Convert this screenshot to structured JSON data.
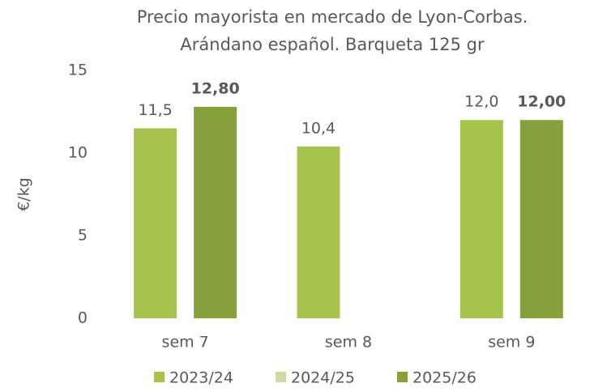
{
  "chart_data": {
    "type": "bar",
    "title": [
      "Precio mayorista en mercado de Lyon-Corbas.",
      "Arándano español. Barqueta 125 gr"
    ],
    "y_label": "€/kg",
    "categories": [
      "sem 7",
      "sem 8",
      "sem 9"
    ],
    "series": [
      {
        "name": "2023/24",
        "color": "#a6c34b",
        "values": [
          11.5,
          10.4,
          12.0
        ],
        "value_labels": [
          "11,5",
          "10,4",
          "12,0"
        ],
        "label_weight": "normal"
      },
      {
        "name": "2024/25",
        "color": "#cddca6",
        "values": [
          null,
          null,
          null
        ],
        "value_labels": [
          null,
          null,
          null
        ],
        "label_weight": "normal"
      },
      {
        "name": "2025/26",
        "color": "#86a03c",
        "values": [
          12.8,
          null,
          12.0
        ],
        "value_labels": [
          "12,80",
          null,
          "12,00"
        ],
        "label_weight": "bold"
      }
    ],
    "ylim": [
      0,
      15
    ],
    "yticks": [
      0,
      5,
      10,
      15
    ],
    "grid": false,
    "legend": "bottom"
  }
}
